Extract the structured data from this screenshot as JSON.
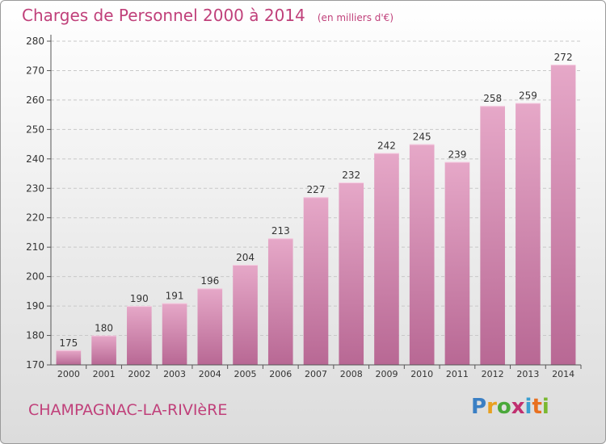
{
  "header": {
    "title": "Charges de Personnel 2000 à 2014",
    "unit": "(en milliers d'€)"
  },
  "footer": {
    "commune": "CHAMPAGNAC-LA-RIVIèRE",
    "logo_text": "Proxiti"
  },
  "chart_data": {
    "type": "bar",
    "title": "Charges de Personnel 2000 à 2014",
    "subtitle": "(en milliers d'€)",
    "xlabel": "",
    "ylabel": "",
    "categories": [
      "2000",
      "2001",
      "2002",
      "2003",
      "2004",
      "2005",
      "2006",
      "2007",
      "2008",
      "2009",
      "2010",
      "2011",
      "2012",
      "2013",
      "2014"
    ],
    "values": [
      175,
      180,
      190,
      191,
      196,
      204,
      213,
      227,
      232,
      242,
      245,
      239,
      258,
      259,
      272
    ],
    "ylim": [
      170,
      280
    ],
    "yticks": [
      170,
      180,
      190,
      200,
      210,
      220,
      230,
      240,
      250,
      260,
      270,
      280
    ],
    "grid": true,
    "data_labels": true,
    "colors": {
      "bar": "#d488b0",
      "bar_light": "#e6a8c8",
      "bar_dark": "#b86894",
      "text": "#c0407a"
    }
  }
}
